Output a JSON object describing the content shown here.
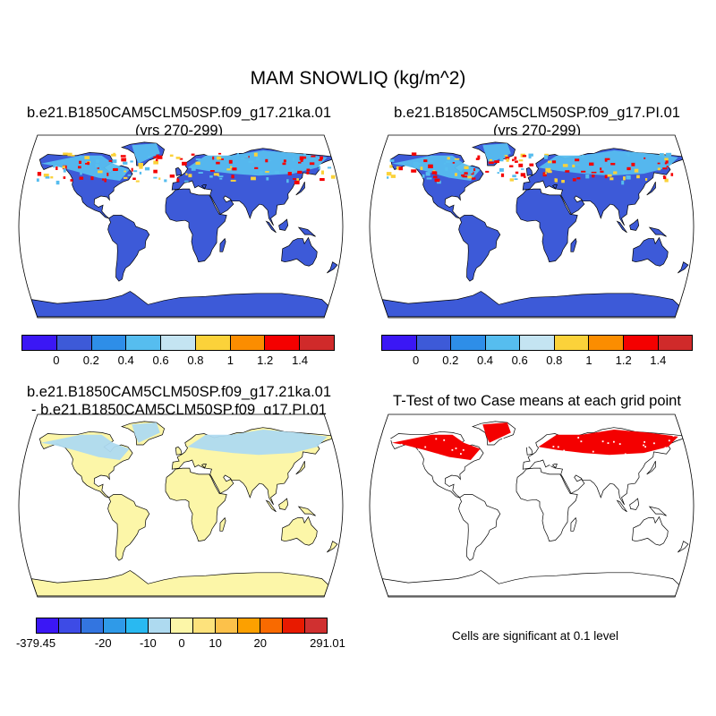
{
  "figure_title": "MAM SNOWLIQ (kg/m^2)",
  "panels": {
    "top_left": {
      "title_line1": "b.e21.B1850CAM5CLM50SP.f09_g17.21ka.01",
      "title_line2": "(yrs 270-299)"
    },
    "top_right": {
      "title_line1": "b.e21.B1850CAM5CLM50SP.f09_g17.PI.01",
      "title_line2": "(yrs 270-299)"
    },
    "bottom_left": {
      "title_line1": "b.e21.B1850CAM5CLM50SP.f09_g17.21ka.01",
      "title_line2": "- b.e21.B1850CAM5CLM50SP.f09_g17.PI.01"
    },
    "bottom_right": {
      "title": "T-Test of two Case means at each grid point",
      "note": "Cells are significant at 0.1 level"
    }
  },
  "colorbar_top": {
    "colors": [
      "#3b17f5",
      "#3d5ad8",
      "#2e8ee8",
      "#56bdef",
      "#c4e4f2",
      "#fbd23a",
      "#fb8d00",
      "#f40000",
      "#d02a2a"
    ],
    "ticks": [
      "0",
      "0.2",
      "0.4",
      "0.6",
      "0.8",
      "1",
      "1.2",
      "1.4"
    ]
  },
  "colorbar_diff": {
    "colors": [
      "#3b17f5",
      "#3d4be6",
      "#3375e0",
      "#2f9ae8",
      "#29b9f1",
      "#aedaf0",
      "#fcf6a8",
      "#fde27c",
      "#fcc14a",
      "#fca000",
      "#f96a00",
      "#e81a00",
      "#d03030"
    ],
    "ticks": [
      "-379.45",
      "-20",
      "-10",
      "0",
      "10",
      "20",
      "291.01"
    ]
  },
  "map_colors": {
    "ocean": "#ffffff",
    "land_mean": "#3d5ad8",
    "snow_high": "#f40000",
    "snow_mid": "#fbd23a",
    "snow_light": "#56bdef",
    "diff_pos": "#fcf6a8",
    "diff_neg": "#aedaf0",
    "signif": "#f40000"
  }
}
